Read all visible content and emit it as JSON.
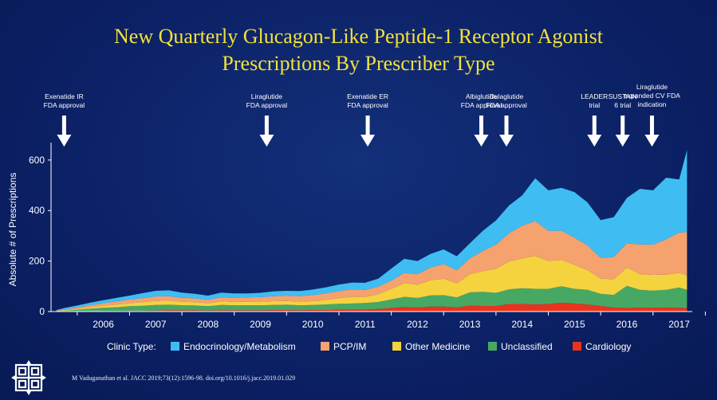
{
  "title_line1": "New Quarterly Glucagon-Like Peptide-1 Receptor Agonist",
  "title_line2": "Prescriptions By Prescriber Type",
  "citation": "M Vaduganathan et al. JACC 2019;73(12):1596-98. doi.org/10.1016/j.jacc.2019.01.029",
  "colors": {
    "background": "#0b1f63",
    "title": "#f2e23a",
    "endo": "#3fbdf2",
    "pcp": "#f5a26e",
    "other": "#f5d33f",
    "uncl": "#47a864",
    "cardio": "#e8331e"
  },
  "chart_data": {
    "type": "area",
    "stacked": true,
    "ylabel": "Absolute # of Prescriptions",
    "ylim": [
      0,
      650
    ],
    "yticks": [
      0,
      200,
      400,
      600
    ],
    "year_labels": [
      "2006",
      "2007",
      "2008",
      "2009",
      "2010",
      "2011",
      "2012",
      "2013",
      "2014",
      "2015",
      "2016",
      "2017"
    ],
    "xlim": [
      2005.5,
      2017.75
    ],
    "x": [
      2005.6,
      2005.75,
      2006.0,
      2006.25,
      2006.5,
      2006.75,
      2007.0,
      2007.25,
      2007.5,
      2007.75,
      2008.0,
      2008.25,
      2008.5,
      2008.75,
      2009.0,
      2009.25,
      2009.5,
      2009.75,
      2010.0,
      2010.25,
      2010.5,
      2010.75,
      2011.0,
      2011.25,
      2011.5,
      2011.75,
      2012.0,
      2012.25,
      2012.5,
      2012.75,
      2013.0,
      2013.25,
      2013.5,
      2013.75,
      2014.0,
      2014.25,
      2014.5,
      2014.75,
      2015.0,
      2015.25,
      2015.5,
      2015.75,
      2016.0,
      2016.25,
      2016.5,
      2016.75,
      2017.0,
      2017.25,
      2017.5,
      2017.65
    ],
    "legend_title": "Clinic Type:",
    "legend_position": "bottom",
    "series": [
      {
        "name": "Cardiology",
        "color_key": "cardio",
        "values": [
          0,
          0,
          1,
          1,
          2,
          2,
          3,
          3,
          4,
          5,
          5,
          5,
          4,
          5,
          5,
          5,
          5,
          6,
          6,
          5,
          6,
          6,
          7,
          7,
          8,
          10,
          14,
          18,
          16,
          20,
          20,
          16,
          24,
          22,
          22,
          30,
          30,
          28,
          30,
          35,
          32,
          28,
          22,
          16,
          14,
          16,
          15,
          16,
          15,
          14
        ]
      },
      {
        "name": "Unclassified",
        "color_key": "uncl",
        "values": [
          1,
          3,
          6,
          10,
          13,
          15,
          18,
          20,
          22,
          22,
          20,
          19,
          17,
          21,
          20,
          20,
          20,
          20,
          21,
          20,
          20,
          22,
          24,
          25,
          26,
          28,
          34,
          40,
          38,
          44,
          45,
          40,
          52,
          56,
          52,
          58,
          62,
          62,
          60,
          65,
          58,
          58,
          48,
          50,
          88,
          70,
          68,
          70,
          80,
          72
        ]
      },
      {
        "name": "Other Medicine",
        "color_key": "other",
        "values": [
          1,
          2,
          4,
          6,
          8,
          10,
          12,
          14,
          16,
          16,
          14,
          13,
          12,
          14,
          13,
          14,
          14,
          15,
          15,
          14,
          15,
          18,
          22,
          26,
          24,
          30,
          42,
          55,
          52,
          60,
          65,
          55,
          72,
          82,
          95,
          110,
          118,
          130,
          110,
          105,
          95,
          78,
          60,
          62,
          72,
          62,
          62,
          60,
          58,
          58
        ]
      },
      {
        "name": "PCP/IM",
        "color_key": "pcp",
        "values": [
          2,
          3,
          5,
          8,
          10,
          13,
          15,
          16,
          18,
          18,
          16,
          15,
          14,
          16,
          16,
          17,
          18,
          20,
          21,
          22,
          24,
          26,
          28,
          30,
          28,
          30,
          32,
          40,
          42,
          50,
          58,
          52,
          62,
          80,
          96,
          112,
          130,
          138,
          120,
          115,
          108,
          98,
          82,
          88,
          96,
          118,
          120,
          140,
          160,
          170
        ]
      },
      {
        "name": "Endocrinology/Metabolism",
        "color_key": "endo",
        "values": [
          2,
          6,
          8,
          10,
          12,
          14,
          15,
          20,
          22,
          23,
          20,
          18,
          16,
          19,
          18,
          16,
          17,
          19,
          19,
          20,
          22,
          24,
          26,
          27,
          28,
          32,
          48,
          56,
          52,
          54,
          58,
          56,
          60,
          80,
          96,
          110,
          120,
          170,
          160,
          170,
          180,
          170,
          150,
          158,
          180,
          220,
          215,
          244,
          210,
          326
        ]
      }
    ],
    "annotations": [
      {
        "x": 2005.75,
        "lines": [
          "Exenatide IR",
          "FDA approval"
        ]
      },
      {
        "x": 2009.62,
        "lines": [
          "Liraglutide",
          "FDA approval"
        ]
      },
      {
        "x": 2011.55,
        "lines": [
          "Exenatide ER",
          "FDA approval"
        ]
      },
      {
        "x": 2013.72,
        "lines": [
          "Albiglutide",
          "FDA approval"
        ]
      },
      {
        "x": 2014.2,
        "lines": [
          "Dulaglutide",
          "FDA approval"
        ]
      },
      {
        "x": 2015.88,
        "lines": [
          "LEADER",
          "trial"
        ]
      },
      {
        "x": 2016.42,
        "lines": [
          "SUSTAIN",
          "6 trial"
        ]
      },
      {
        "x": 2016.98,
        "lines": [
          "Liraglutide",
          "expanded CV FDA",
          "indication"
        ]
      }
    ]
  }
}
